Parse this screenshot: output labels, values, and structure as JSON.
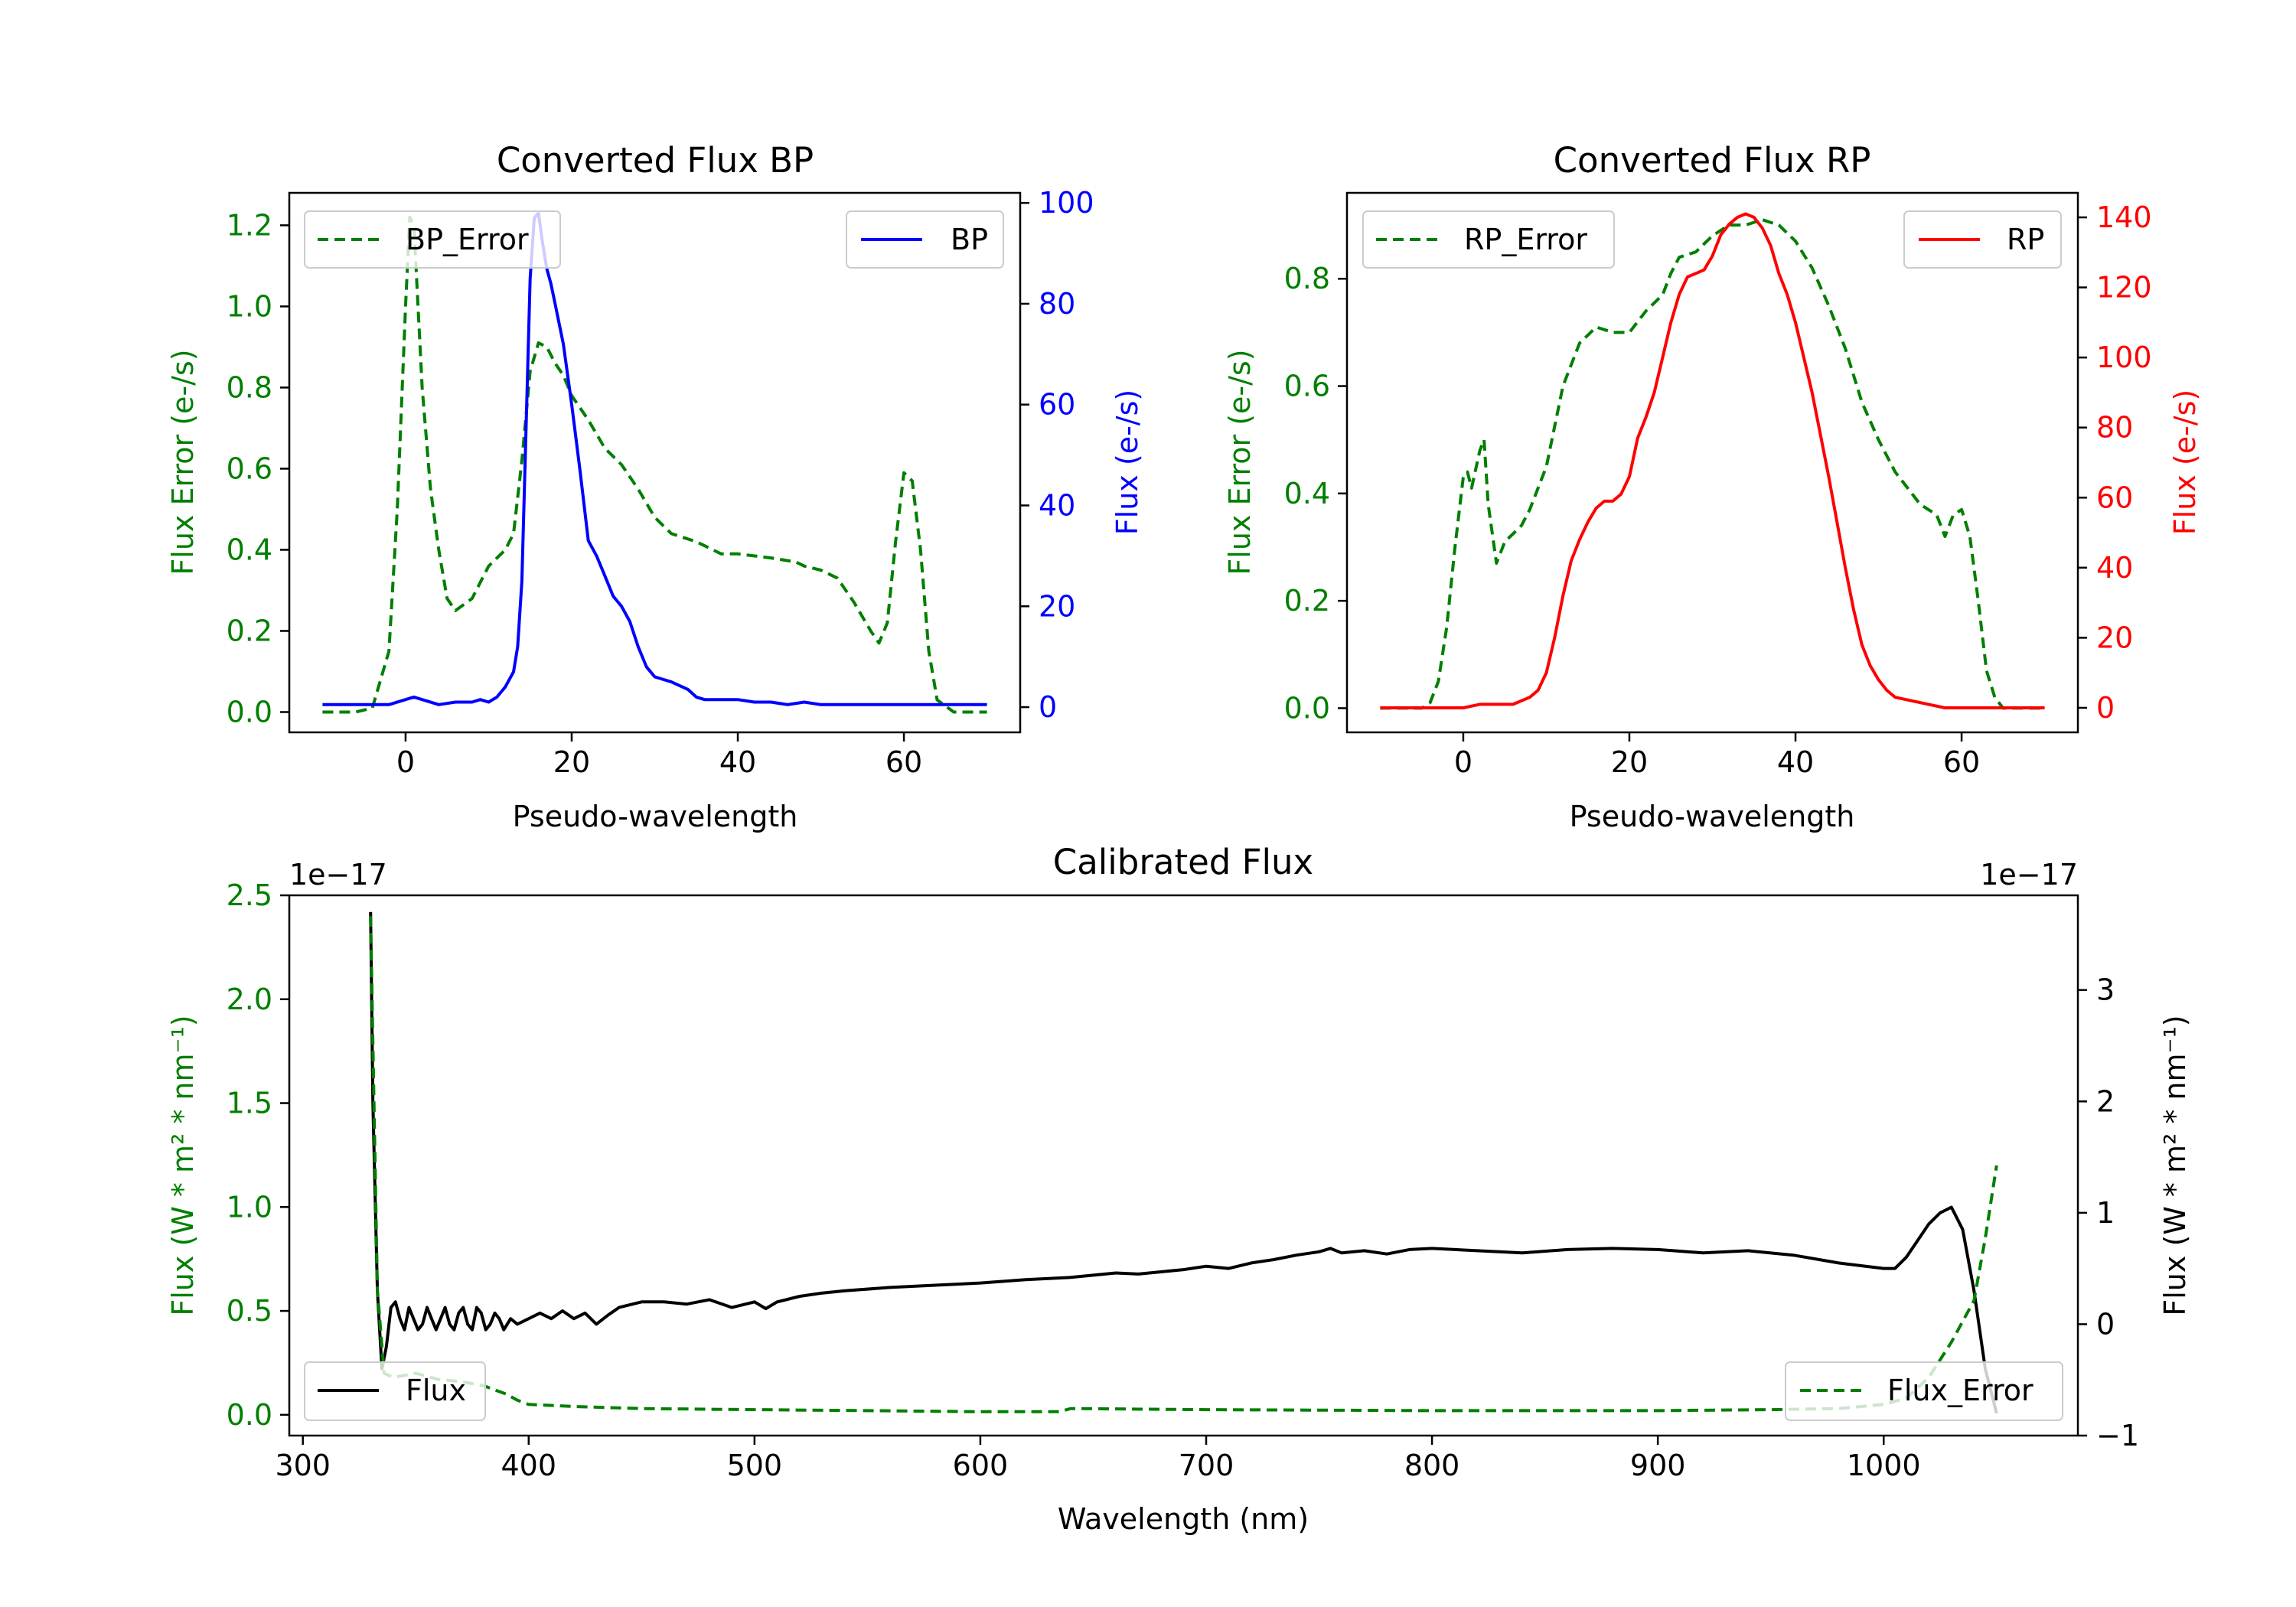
{
  "colors": {
    "green": "#007f00",
    "blue": "#0000ff",
    "red": "#ff0000",
    "black": "#000000"
  },
  "chart_data": [
    {
      "type": "line",
      "title": "Converted Flux BP",
      "xlabel": "Pseudo-wavelength",
      "xlim": [
        -14,
        74
      ],
      "xticks": [
        0,
        20,
        40,
        60
      ],
      "left_axis": {
        "label": "Flux Error (e-/s)",
        "ylim": [
          -0.05,
          1.28
        ],
        "ticks": [
          0.0,
          0.2,
          0.4,
          0.6,
          0.8,
          1.0,
          1.2
        ],
        "tick_labels": [
          "0.0",
          "0.2",
          "0.4",
          "0.6",
          "0.8",
          "1.0",
          "1.2"
        ]
      },
      "right_axis": {
        "label": "Flux (e-/s)",
        "ylim": [
          -5,
          102
        ],
        "ticks": [
          0,
          20,
          40,
          60,
          80,
          100
        ],
        "tick_labels": [
          "0",
          "20",
          "40",
          "60",
          "80",
          "100"
        ]
      },
      "series": [
        {
          "name": "BP_Error",
          "axis": "left",
          "style": "dashed",
          "color": "#007f00",
          "x": [
            -10,
            -6,
            -4,
            -2,
            -1,
            0,
            0.5,
            1,
            2,
            3,
            4,
            5,
            6,
            8,
            10,
            12,
            13,
            14,
            15,
            16,
            17,
            18,
            19,
            20,
            22,
            24,
            26,
            28,
            30,
            32,
            35,
            38,
            40,
            44,
            47,
            48,
            50,
            52,
            54,
            56,
            57,
            58,
            59,
            60,
            61,
            62,
            63,
            64,
            66,
            70
          ],
          "y": [
            0.0,
            0.0,
            0.01,
            0.15,
            0.5,
            1.0,
            1.22,
            1.2,
            0.8,
            0.55,
            0.4,
            0.28,
            0.25,
            0.28,
            0.36,
            0.4,
            0.44,
            0.62,
            0.84,
            0.91,
            0.9,
            0.86,
            0.83,
            0.78,
            0.72,
            0.65,
            0.61,
            0.55,
            0.48,
            0.44,
            0.42,
            0.39,
            0.39,
            0.38,
            0.37,
            0.36,
            0.35,
            0.33,
            0.27,
            0.2,
            0.17,
            0.22,
            0.42,
            0.59,
            0.57,
            0.4,
            0.15,
            0.03,
            0.0,
            0.0
          ]
        },
        {
          "name": "BP",
          "axis": "right",
          "style": "solid",
          "color": "#0000ff",
          "x": [
            -10,
            -6,
            -4,
            -2,
            0,
            1,
            2,
            4,
            6,
            8,
            9,
            10,
            11,
            12,
            13,
            13.5,
            14,
            14.5,
            15,
            15.5,
            16,
            16.5,
            17,
            17.5,
            18,
            19,
            20,
            21,
            22,
            23,
            24,
            25,
            26,
            27,
            28,
            29,
            30,
            32,
            34,
            35,
            36,
            38,
            40,
            42,
            44,
            46,
            48,
            50,
            52,
            54,
            56,
            58,
            60,
            62,
            64,
            66,
            70
          ],
          "y": [
            0.5,
            0.5,
            0.5,
            0.5,
            1.5,
            2.0,
            1.5,
            0.5,
            1.0,
            1.0,
            1.5,
            1.0,
            2.0,
            4.0,
            7.0,
            12.0,
            25.0,
            55.0,
            85.0,
            97.0,
            98.0,
            92.0,
            87.0,
            84.0,
            80.0,
            72.0,
            60.0,
            47.0,
            33.0,
            30.0,
            26.0,
            22.0,
            20.0,
            17.0,
            12.0,
            8.0,
            6.0,
            5.0,
            3.5,
            2.0,
            1.5,
            1.5,
            1.5,
            1.0,
            1.0,
            0.5,
            1.0,
            0.5,
            0.5,
            0.5,
            0.5,
            0.5,
            0.5,
            0.5,
            0.5,
            0.5,
            0.5
          ]
        }
      ],
      "legend_left": "top-left",
      "legend_right": "top-right"
    },
    {
      "type": "line",
      "title": "Converted Flux RP",
      "xlabel": "Pseudo-wavelength",
      "xlim": [
        -14,
        74
      ],
      "xticks": [
        0,
        20,
        40,
        60
      ],
      "left_axis": {
        "label": "Flux Error (e-/s)",
        "ylim": [
          -0.045,
          0.96
        ],
        "ticks": [
          0.0,
          0.2,
          0.4,
          0.6,
          0.8
        ],
        "tick_labels": [
          "0.0",
          "0.2",
          "0.4",
          "0.6",
          "0.8"
        ]
      },
      "right_axis": {
        "label": "Flux (e-/s)",
        "ylim": [
          -7,
          147
        ],
        "ticks": [
          0,
          20,
          40,
          60,
          80,
          100,
          120,
          140
        ],
        "tick_labels": [
          "0",
          "20",
          "40",
          "60",
          "80",
          "100",
          "120",
          "140"
        ]
      },
      "series": [
        {
          "name": "RP_Error",
          "axis": "left",
          "style": "dashed",
          "color": "#007f00",
          "x": [
            -10,
            -5,
            -4,
            -3,
            -2,
            -1,
            0,
            0.5,
            1,
            2,
            2.5,
            3,
            4,
            5,
            7,
            8,
            10,
            12,
            14,
            16,
            18,
            20,
            22,
            24,
            25,
            26,
            28,
            30,
            32,
            34,
            36,
            38,
            40,
            42,
            44,
            46,
            48,
            50,
            52,
            54,
            55,
            56,
            57,
            58,
            59,
            60,
            61,
            62,
            63,
            64,
            65,
            70
          ],
          "y": [
            0.0,
            0.0,
            0.01,
            0.05,
            0.15,
            0.3,
            0.43,
            0.44,
            0.41,
            0.48,
            0.5,
            0.38,
            0.27,
            0.31,
            0.34,
            0.37,
            0.45,
            0.6,
            0.68,
            0.71,
            0.7,
            0.7,
            0.74,
            0.77,
            0.81,
            0.84,
            0.85,
            0.88,
            0.9,
            0.9,
            0.91,
            0.9,
            0.87,
            0.82,
            0.75,
            0.67,
            0.57,
            0.5,
            0.44,
            0.4,
            0.38,
            0.37,
            0.36,
            0.32,
            0.36,
            0.37,
            0.32,
            0.2,
            0.07,
            0.02,
            0.0,
            0.0
          ]
        },
        {
          "name": "RP",
          "axis": "right",
          "style": "solid",
          "color": "#ff0000",
          "x": [
            -10,
            -4,
            0,
            2,
            4,
            6,
            8,
            9,
            10,
            11,
            12,
            13,
            14,
            15,
            16,
            17,
            18,
            19,
            20,
            21,
            22,
            23,
            24,
            25,
            26,
            27,
            28,
            29,
            30,
            31,
            32,
            33,
            34,
            35,
            36,
            37,
            38,
            39,
            40,
            41,
            42,
            43,
            44,
            45,
            46,
            47,
            48,
            49,
            50,
            51,
            52,
            54,
            56,
            58,
            60,
            62,
            64,
            66,
            70
          ],
          "y": [
            0,
            0,
            0,
            1,
            1,
            1,
            3,
            5,
            10,
            20,
            32,
            42,
            48,
            53,
            57,
            59,
            59,
            61,
            66,
            77,
            83,
            90,
            100,
            110,
            118,
            123,
            124,
            125,
            129,
            135,
            138,
            140,
            141,
            140,
            137,
            132,
            124,
            118,
            110,
            100,
            90,
            78,
            66,
            53,
            40,
            28,
            18,
            12,
            8,
            5,
            3,
            2,
            1,
            0,
            0,
            0,
            0,
            0,
            0
          ]
        }
      ],
      "legend_left": "top-left",
      "legend_right": "top-right"
    },
    {
      "type": "line",
      "title": "Calibrated Flux",
      "xlabel": "Wavelength (nm)",
      "xlim": [
        294,
        1086
      ],
      "xticks": [
        300,
        400,
        500,
        600,
        700,
        800,
        900,
        1000
      ],
      "left_axis": {
        "label": "Flux (W * m² * nm⁻¹)",
        "offset_text": "1e−17",
        "ylim": [
          -0.1,
          2.5
        ],
        "ticks": [
          0.0,
          0.5,
          1.0,
          1.5,
          2.0,
          2.5
        ],
        "tick_labels": [
          "0.0",
          "0.5",
          "1.0",
          "1.5",
          "2.0",
          "2.5"
        ]
      },
      "right_axis": {
        "label": "Flux (W * m² * nm⁻¹)",
        "offset_text": "1e−17",
        "ylim": [
          -1.0,
          3.85
        ],
        "ticks": [
          -1,
          0,
          1,
          2,
          3
        ],
        "tick_labels": [
          "−1",
          "0",
          "1",
          "2",
          "3"
        ]
      },
      "series": [
        {
          "name": "Flux",
          "axis": "right",
          "style": "solid",
          "color": "#000000",
          "x": [
            330,
            331,
            333,
            335,
            337,
            339,
            341,
            343,
            345,
            347,
            349,
            351,
            353,
            355,
            357,
            359,
            361,
            363,
            365,
            367,
            369,
            371,
            373,
            375,
            377,
            379,
            381,
            383,
            385,
            387,
            389,
            392,
            395,
            400,
            405,
            410,
            415,
            420,
            425,
            430,
            435,
            440,
            450,
            460,
            470,
            480,
            490,
            500,
            505,
            510,
            520,
            530,
            540,
            560,
            580,
            600,
            620,
            640,
            650,
            660,
            670,
            680,
            690,
            700,
            710,
            720,
            730,
            740,
            750,
            755,
            760,
            770,
            780,
            790,
            800,
            820,
            840,
            860,
            880,
            900,
            920,
            940,
            960,
            980,
            1000,
            1005,
            1010,
            1020,
            1025,
            1030,
            1035,
            1040,
            1045,
            1050
          ],
          "y": [
            3.7,
            2.0,
            0.3,
            -0.4,
            -0.2,
            0.15,
            0.2,
            0.05,
            -0.05,
            0.15,
            0.05,
            -0.05,
            0.0,
            0.15,
            0.05,
            -0.05,
            0.05,
            0.15,
            0.0,
            -0.05,
            0.1,
            0.15,
            0.0,
            -0.05,
            0.15,
            0.1,
            -0.05,
            0.0,
            0.1,
            0.05,
            -0.05,
            0.05,
            0.0,
            0.05,
            0.1,
            0.05,
            0.12,
            0.05,
            0.1,
            0.0,
            0.08,
            0.15,
            0.2,
            0.2,
            0.18,
            0.22,
            0.15,
            0.2,
            0.14,
            0.2,
            0.25,
            0.28,
            0.3,
            0.33,
            0.35,
            0.37,
            0.4,
            0.42,
            0.44,
            0.46,
            0.45,
            0.47,
            0.49,
            0.52,
            0.5,
            0.55,
            0.58,
            0.62,
            0.65,
            0.68,
            0.64,
            0.66,
            0.63,
            0.67,
            0.68,
            0.66,
            0.64,
            0.67,
            0.68,
            0.67,
            0.64,
            0.66,
            0.62,
            0.55,
            0.5,
            0.5,
            0.6,
            0.9,
            1.0,
            1.05,
            0.85,
            0.3,
            -0.4,
            -0.8
          ]
        },
        {
          "name": "Flux_Error",
          "axis": "left",
          "style": "dashed",
          "color": "#007f00",
          "x": [
            330,
            333,
            336,
            340,
            350,
            360,
            370,
            380,
            385,
            390,
            395,
            400,
            420,
            450,
            500,
            550,
            600,
            635,
            640,
            700,
            800,
            900,
            950,
            980,
            1000,
            1010,
            1020,
            1030,
            1040,
            1045,
            1050
          ],
          "y": [
            2.4,
            0.6,
            0.2,
            0.18,
            0.2,
            0.17,
            0.16,
            0.14,
            0.12,
            0.1,
            0.07,
            0.05,
            0.04,
            0.03,
            0.025,
            0.02,
            0.015,
            0.015,
            0.03,
            0.025,
            0.02,
            0.02,
            0.025,
            0.03,
            0.05,
            0.08,
            0.18,
            0.35,
            0.55,
            0.85,
            1.2
          ]
        }
      ],
      "legend_left": "lower-left",
      "legend_right": "lower-right"
    }
  ]
}
